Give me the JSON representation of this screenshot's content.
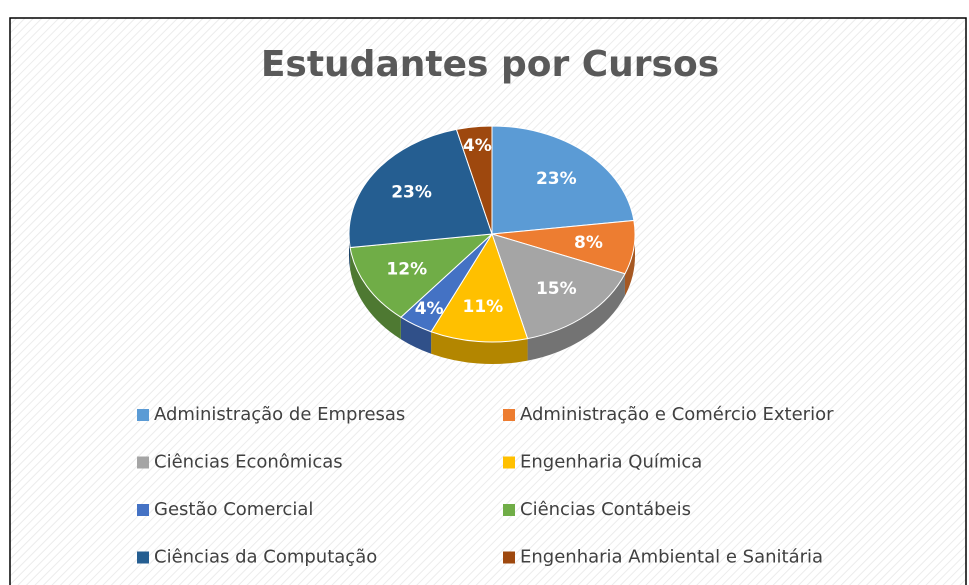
{
  "chart_data": {
    "type": "pie",
    "title": "Estudantes por Cursos",
    "categories": [
      "Administração de Empresas",
      "Administração e Comércio Exterior",
      "Ciências Econômicas",
      "Engenharia Química",
      "Gestão Comercial",
      "Ciências Contábeis",
      "Ciências da Computação",
      "Engenharia Ambiental e Sanitária"
    ],
    "values": [
      23,
      8,
      15,
      11,
      4,
      12,
      23,
      4
    ],
    "value_labels": [
      "23%",
      "8%",
      "15%",
      "11%",
      "4%",
      "12%",
      "23%",
      "4%"
    ],
    "colors": [
      "#5b9bd5",
      "#ed7d31",
      "#a5a5a5",
      "#ffc000",
      "#4472c4",
      "#70ad47",
      "#255e91",
      "#9e480e"
    ],
    "legend": "bottom"
  }
}
